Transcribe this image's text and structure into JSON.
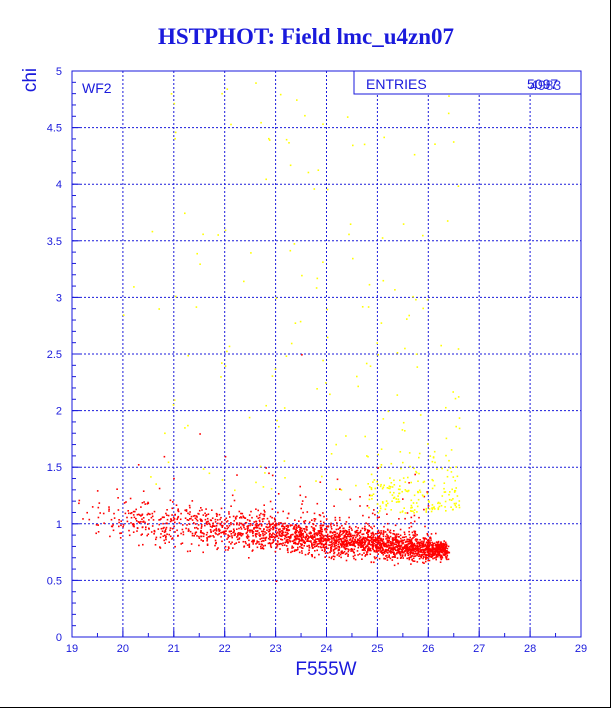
{
  "title": "HSTPHOT: Field lmc_u4zn07",
  "panel_label": "WF2",
  "stats": {
    "label": "ENTRIES",
    "value_a": "5097",
    "value_b": "4983"
  },
  "colors": {
    "axis": "#1a1adc",
    "grid": "#1a1adc",
    "title": "#1a1adc",
    "primary_points": "#ff0000",
    "secondary_points": "#ffff00"
  },
  "chart_data": {
    "type": "scatter",
    "title": "HSTPHOT: Field lmc_u4zn07",
    "xlabel": "F555W",
    "ylabel": "chi",
    "xlim": [
      19,
      29
    ],
    "ylim": [
      0,
      5
    ],
    "grid": true,
    "x_ticks": [
      "19",
      "20",
      "21",
      "22",
      "23",
      "24",
      "25",
      "26",
      "27",
      "28",
      "29"
    ],
    "y_ticks": [
      "0",
      "0.5",
      "1",
      "1.5",
      "2",
      "2.5",
      "3",
      "3.5",
      "4",
      "4.5",
      "5"
    ],
    "series": [
      {
        "color": "#ff0000",
        "count": 4983,
        "x_range": [
          19.0,
          26.4
        ],
        "y_core": [
          0.5,
          1.3
        ],
        "points": [
          [
            19.2,
            1.05
          ],
          [
            19.5,
            1.15
          ],
          [
            19.8,
            0.95
          ],
          [
            20.1,
            1.1
          ],
          [
            20.4,
            1.2
          ],
          [
            20.7,
            1.0
          ],
          [
            21.0,
            1.05
          ],
          [
            21.3,
            1.15
          ],
          [
            21.6,
            1.1
          ],
          [
            21.9,
            1.0
          ],
          [
            22.2,
            1.05
          ],
          [
            22.5,
            0.95
          ],
          [
            22.8,
            0.98
          ],
          [
            23.1,
            0.92
          ],
          [
            23.4,
            0.9
          ],
          [
            23.7,
            0.88
          ],
          [
            24.0,
            0.9
          ],
          [
            24.3,
            0.85
          ],
          [
            24.6,
            0.87
          ],
          [
            24.9,
            0.82
          ],
          [
            25.2,
            0.85
          ],
          [
            25.5,
            0.8
          ],
          [
            25.8,
            0.83
          ],
          [
            26.1,
            0.78
          ],
          [
            21.5,
            1.8
          ],
          [
            22.0,
            1.6
          ],
          [
            22.8,
            1.5
          ],
          [
            23.5,
            2.5
          ],
          [
            24.2,
            1.4
          ],
          [
            25.0,
            1.5
          ],
          [
            20.8,
            1.6
          ],
          [
            23.0,
            0.5
          ]
        ]
      },
      {
        "color": "#ffff00",
        "count": 114,
        "x_range": [
          19.5,
          26.7
        ],
        "y_core": [
          1.2,
          5.0
        ],
        "points": [
          [
            22.6,
            4.9
          ],
          [
            23.4,
            4.75
          ],
          [
            22.7,
            4.55
          ],
          [
            24.4,
            4.6
          ],
          [
            24.5,
            4.35
          ],
          [
            23.2,
            4.4
          ],
          [
            22.8,
            4.05
          ],
          [
            21.2,
            3.75
          ],
          [
            22.0,
            3.6
          ],
          [
            22.5,
            3.4
          ],
          [
            23.0,
            3.0
          ],
          [
            23.5,
            3.2
          ],
          [
            24.5,
            3.35
          ],
          [
            21.5,
            3.3
          ],
          [
            20.2,
            3.1
          ],
          [
            24.0,
            2.9
          ],
          [
            25.0,
            2.5
          ],
          [
            22.0,
            2.4
          ],
          [
            23.8,
            2.2
          ],
          [
            25.5,
            1.9
          ],
          [
            26.6,
            1.85
          ],
          [
            24.8,
            1.6
          ],
          [
            25.6,
            1.3
          ],
          [
            26.0,
            1.2
          ],
          [
            21.0,
            2.1
          ],
          [
            20.0,
            2.85
          ],
          [
            23.3,
            2.6
          ],
          [
            25.2,
            2.0
          ]
        ]
      }
    ]
  }
}
